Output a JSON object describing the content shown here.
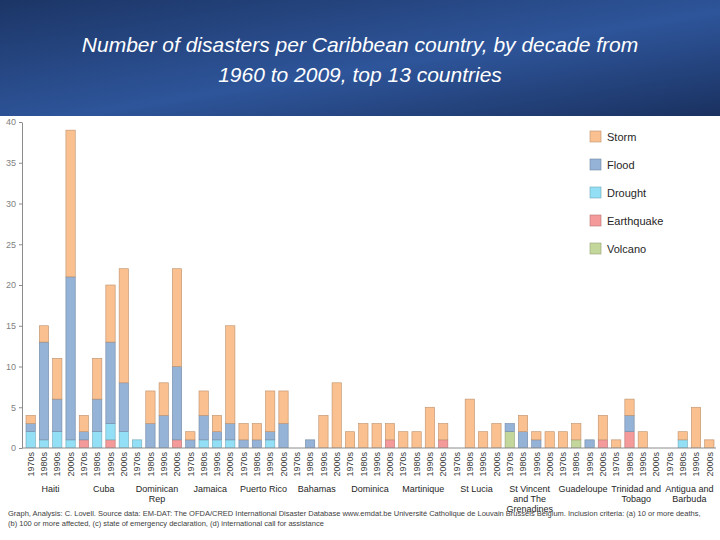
{
  "chart_data": {
    "type": "bar",
    "title": "Number of disasters per Caribbean country, by decade from 1960 to 2009, top 13 countries",
    "categories": [
      "1970s",
      "1980s",
      "1990s",
      "2000s",
      "1970s",
      "1980s",
      "1990s",
      "2000s",
      "1970s",
      "1980s",
      "1990s",
      "2000s",
      "1970s",
      "1980s",
      "1990s",
      "2000s",
      "1970s",
      "1980s",
      "1990s",
      "2000s",
      "1970s",
      "1980s",
      "1990s",
      "2000s",
      "1970s",
      "1980s",
      "1990s",
      "2000s",
      "1970s",
      "1980s",
      "1990s",
      "2000s",
      "1970s",
      "1980s",
      "1990s",
      "2000s",
      "1970s",
      "1980s",
      "1990s",
      "2000s",
      "1970s",
      "1980s",
      "1990s",
      "2000s",
      "1970s",
      "1980s",
      "1990s",
      "2000s",
      "1970s",
      "1980s",
      "1990s",
      "2000s"
    ],
    "groups": [
      "Haiti",
      "Cuba",
      "Dominican Rep",
      "Jamaica",
      "Puerto Rico",
      "Bahamas",
      "Dominica",
      "Martinique",
      "St Lucia",
      "St Vincent and The Grenadines",
      "Guadeloupe",
      "Trinidad and Tobago",
      "Antigua and Barbuda"
    ],
    "series": [
      {
        "name": "Storm",
        "color": "#fac090",
        "values": [
          1,
          2,
          5,
          18,
          2,
          5,
          7,
          14,
          0,
          4,
          4,
          12,
          1,
          3,
          2,
          12,
          2,
          2,
          5,
          4,
          0,
          0,
          4,
          8,
          2,
          3,
          3,
          2,
          2,
          2,
          5,
          2,
          0,
          6,
          2,
          3,
          0,
          2,
          1,
          2,
          2,
          2,
          0,
          3,
          1,
          2,
          2,
          0,
          0,
          1,
          5,
          1
        ]
      },
      {
        "name": "Flood",
        "color": "#95b3d7",
        "values": [
          1,
          12,
          4,
          20,
          1,
          4,
          10,
          6,
          0,
          3,
          4,
          9,
          1,
          3,
          1,
          2,
          1,
          1,
          1,
          3,
          0,
          1,
          0,
          0,
          0,
          0,
          0,
          0,
          0,
          0,
          0,
          0,
          0,
          0,
          0,
          0,
          1,
          2,
          1,
          0,
          0,
          0,
          1,
          0,
          0,
          2,
          0,
          0,
          0,
          0,
          0,
          0
        ]
      },
      {
        "name": "Drought",
        "color": "#93dff5",
        "values": [
          2,
          1,
          2,
          1,
          0,
          2,
          2,
          2,
          1,
          0,
          0,
          0,
          0,
          1,
          1,
          1,
          0,
          0,
          1,
          0,
          0,
          0,
          0,
          0,
          0,
          0,
          0,
          0,
          0,
          0,
          0,
          0,
          0,
          0,
          0,
          0,
          0,
          0,
          0,
          0,
          0,
          0,
          0,
          0,
          0,
          0,
          0,
          0,
          0,
          1,
          0,
          0
        ]
      },
      {
        "name": "Earthquake",
        "color": "#f59a9a",
        "values": [
          0,
          0,
          0,
          0,
          1,
          0,
          1,
          0,
          0,
          0,
          0,
          1,
          0,
          0,
          0,
          0,
          0,
          0,
          0,
          0,
          0,
          0,
          0,
          0,
          0,
          0,
          0,
          1,
          0,
          0,
          0,
          1,
          0,
          0,
          0,
          0,
          0,
          0,
          0,
          0,
          0,
          0,
          0,
          1,
          0,
          2,
          0,
          0,
          0,
          0,
          0,
          0
        ]
      },
      {
        "name": "Volcano",
        "color": "#c3d69b",
        "values": [
          0,
          0,
          0,
          0,
          0,
          0,
          0,
          0,
          0,
          0,
          0,
          0,
          0,
          0,
          0,
          0,
          0,
          0,
          0,
          0,
          0,
          0,
          0,
          0,
          0,
          0,
          0,
          0,
          0,
          0,
          0,
          0,
          0,
          0,
          0,
          0,
          2,
          0,
          0,
          0,
          0,
          1,
          0,
          0,
          0,
          0,
          0,
          0,
          0,
          0,
          0,
          0
        ]
      }
    ],
    "ylim": [
      0,
      40
    ],
    "yticks": [
      0,
      5,
      10,
      15,
      20,
      25,
      30,
      35,
      40
    ],
    "stacked": true,
    "grid": false,
    "legend": "top-right",
    "source": "Graph, Analysis: C. Lovell. Source data: EM-DAT: The OFDA/CRED International Disaster Database www.emdat.be Université Catholique de Louvain Brussels Belgium. Inclusion criteria: (a) 10 or more deaths, (b) 100 or more affected, (c) state of emergency declaration, (d) international call for assistance"
  }
}
